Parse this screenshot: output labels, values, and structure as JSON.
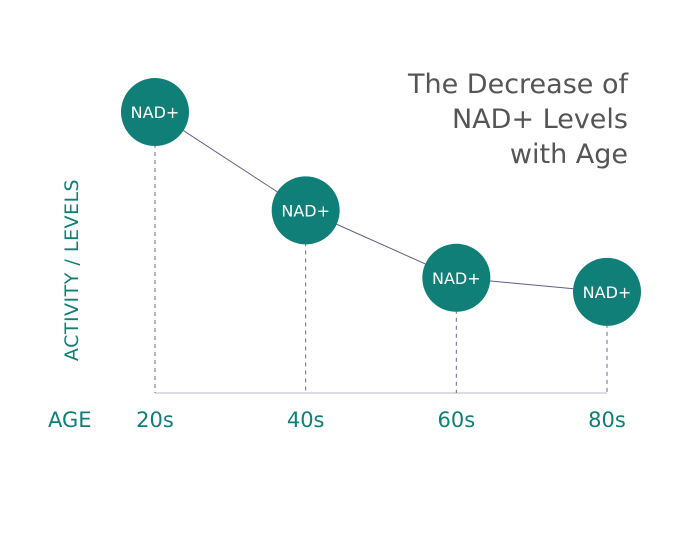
{
  "colors": {
    "accent": "#0f7f77",
    "title": "#555555",
    "connector": "#5f5e86",
    "guide": "#6b6b8c",
    "axis": "#b9b9c6",
    "bubble_text": "#ffffff"
  },
  "chart_data": {
    "type": "line",
    "title_lines": [
      "The Decrease of",
      "NAD+ Levels",
      "with Age"
    ],
    "xlabel": "AGE",
    "ylabel": "ACTIVITY / LEVELS",
    "categories": [
      "20s",
      "40s",
      "60s",
      "80s"
    ],
    "series": [
      {
        "values": [
          100,
          65,
          41,
          36
        ],
        "point_labels": [
          "NAD+",
          "NAD+",
          "NAD+",
          "NAD+"
        ]
      }
    ],
    "ylim": [
      0,
      105
    ],
    "value_scale": "relative, estimated (no numeric axis shown)",
    "grid": false,
    "legend": "none"
  }
}
